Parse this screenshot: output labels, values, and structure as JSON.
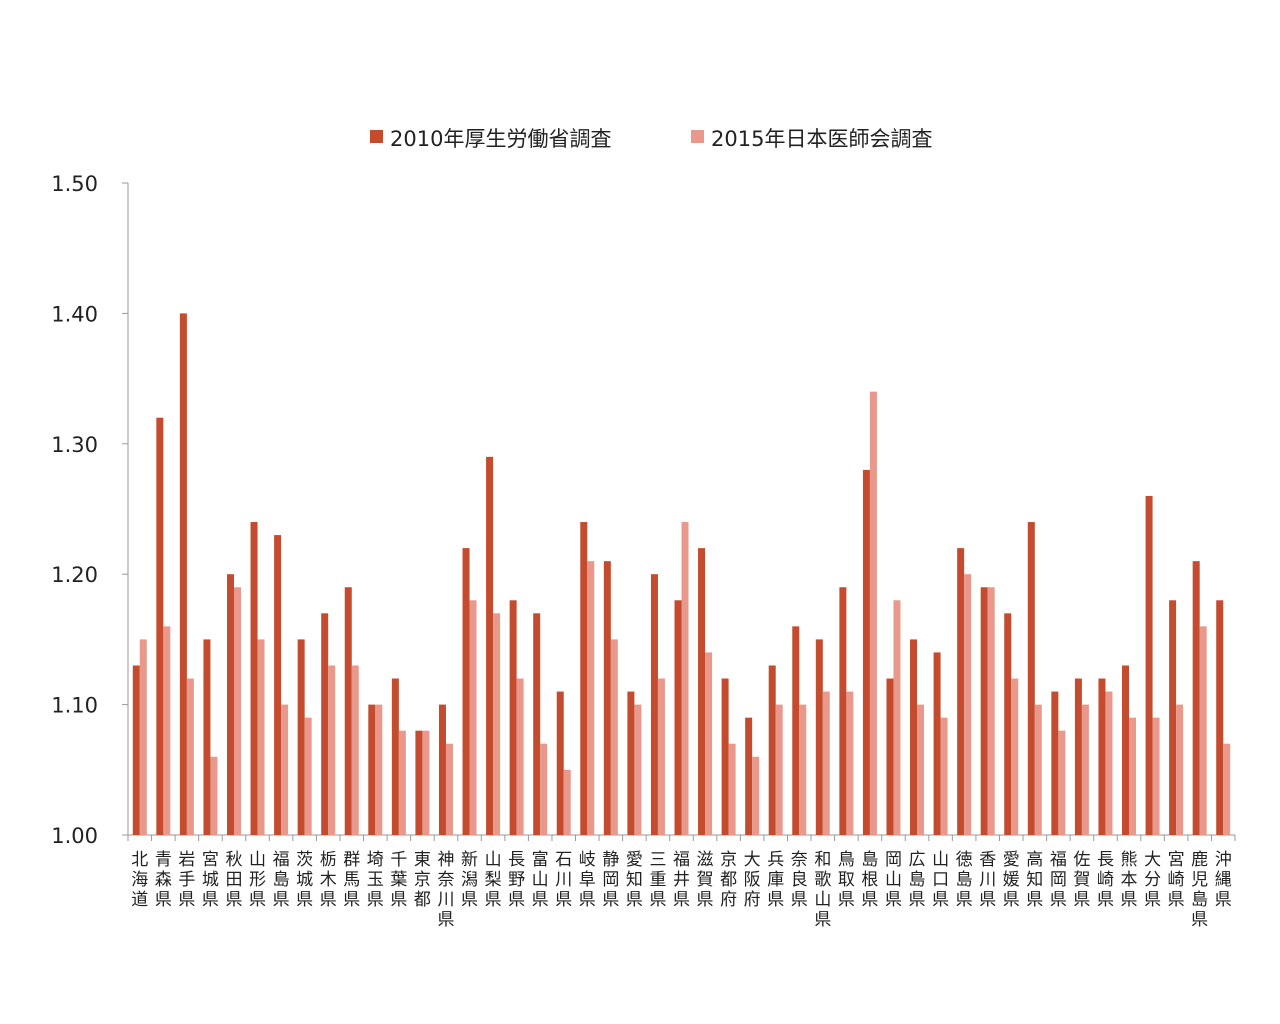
{
  "chart_data": {
    "type": "bar",
    "ylim": [
      1.0,
      1.5
    ],
    "yticks": [
      "1.00",
      "1.10",
      "1.20",
      "1.30",
      "1.40",
      "1.50"
    ],
    "legend_position": "top",
    "grid": false,
    "categories": [
      "北海道",
      "青森県",
      "岩手県",
      "宮城県",
      "秋田県",
      "山形県",
      "福島県",
      "茨城県",
      "栃木県",
      "群馬県",
      "埼玉県",
      "千葉県",
      "東京都",
      "神奈川県",
      "新潟県",
      "山梨県",
      "長野県",
      "富山県",
      "石川県",
      "岐阜県",
      "静岡県",
      "愛知県",
      "三重県",
      "福井県",
      "滋賀県",
      "京都府",
      "大阪府",
      "兵庫県",
      "奈良県",
      "和歌山県",
      "鳥取県",
      "島根県",
      "岡山県",
      "広島県",
      "山口県",
      "徳島県",
      "香川県",
      "愛媛県",
      "高知県",
      "福岡県",
      "佐賀県",
      "長崎県",
      "熊本県",
      "大分県",
      "宮崎県",
      "鹿児島県",
      "沖縄県"
    ],
    "series": [
      {
        "name": "2010年厚生労働省調査",
        "color": "#C54B2E",
        "values": [
          1.13,
          1.32,
          1.4,
          1.15,
          1.2,
          1.24,
          1.23,
          1.15,
          1.17,
          1.19,
          1.1,
          1.12,
          1.08,
          1.1,
          1.22,
          1.29,
          1.18,
          1.17,
          1.11,
          1.24,
          1.21,
          1.11,
          1.2,
          1.18,
          1.22,
          1.12,
          1.09,
          1.13,
          1.16,
          1.15,
          1.19,
          1.28,
          1.12,
          1.15,
          1.14,
          1.22,
          1.19,
          1.17,
          1.24,
          1.11,
          1.12,
          1.12,
          1.13,
          1.26,
          1.18,
          1.21,
          1.18
        ]
      },
      {
        "name": "2015年日本医師会調査",
        "color": "#E8998B",
        "values": [
          1.15,
          1.16,
          1.12,
          1.06,
          1.19,
          1.15,
          1.1,
          1.09,
          1.13,
          1.13,
          1.1,
          1.08,
          1.08,
          1.07,
          1.18,
          1.17,
          1.12,
          1.07,
          1.05,
          1.21,
          1.15,
          1.1,
          1.12,
          1.24,
          1.14,
          1.07,
          1.06,
          1.1,
          1.1,
          1.11,
          1.11,
          1.34,
          1.18,
          1.1,
          1.09,
          1.2,
          1.19,
          1.12,
          1.1,
          1.08,
          1.1,
          1.11,
          1.09,
          1.09,
          1.1,
          1.16,
          1.07
        ]
      }
    ]
  }
}
